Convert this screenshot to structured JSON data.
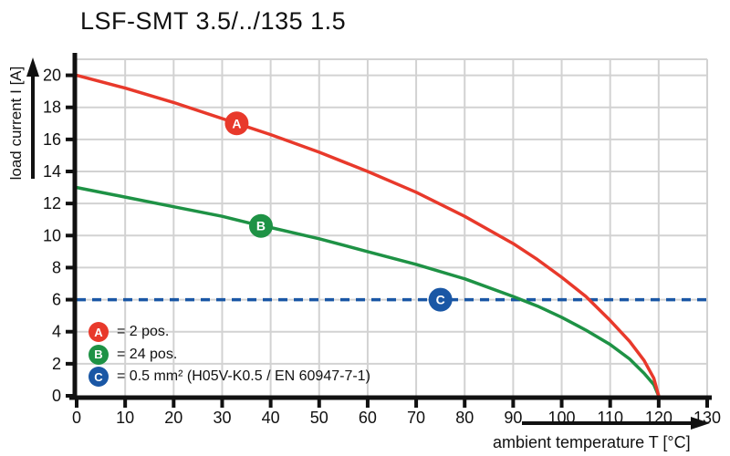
{
  "title": "LSF-SMT 3.5/../135 1.5",
  "chart_data": {
    "type": "line",
    "title": "LSF-SMT 3.5/../135 1.5",
    "xlabel": "ambient temperature T [°C]",
    "ylabel": "load current I [A]",
    "xlim": [
      0,
      130
    ],
    "ylim": [
      0,
      21
    ],
    "xtick_step": 10,
    "ytick_step": 2,
    "grid": true,
    "grid_color": "#d2d2d2",
    "axis_color": "#111111",
    "series": [
      {
        "id": "A",
        "label": "2 pos.",
        "color": "#e8392b",
        "style": "solid",
        "marker": {
          "t": 33,
          "i": 17
        },
        "points": [
          [
            0,
            20
          ],
          [
            10,
            19.2
          ],
          [
            20,
            18.3
          ],
          [
            30,
            17.3
          ],
          [
            33,
            17
          ],
          [
            40,
            16.3
          ],
          [
            50,
            15.2
          ],
          [
            60,
            14.0
          ],
          [
            70,
            12.7
          ],
          [
            80,
            11.2
          ],
          [
            90,
            9.5
          ],
          [
            95,
            8.5
          ],
          [
            100,
            7.4
          ],
          [
            105,
            6.2
          ],
          [
            110,
            4.7
          ],
          [
            114,
            3.4
          ],
          [
            117,
            2.2
          ],
          [
            119,
            1.1
          ],
          [
            120,
            0
          ]
        ]
      },
      {
        "id": "B",
        "label": "24 pos.",
        "color": "#1e9245",
        "style": "solid",
        "marker": {
          "t": 38,
          "i": 10.6
        },
        "points": [
          [
            0,
            13
          ],
          [
            10,
            12.4
          ],
          [
            20,
            11.8
          ],
          [
            30,
            11.2
          ],
          [
            38,
            10.6
          ],
          [
            40,
            10.5
          ],
          [
            50,
            9.8
          ],
          [
            60,
            9.0
          ],
          [
            70,
            8.2
          ],
          [
            80,
            7.3
          ],
          [
            90,
            6.2
          ],
          [
            95,
            5.6
          ],
          [
            100,
            4.9
          ],
          [
            105,
            4.1
          ],
          [
            110,
            3.2
          ],
          [
            114,
            2.3
          ],
          [
            117,
            1.4
          ],
          [
            119,
            0.7
          ],
          [
            120,
            0
          ]
        ]
      },
      {
        "id": "C",
        "label": "0.5 mm² (H05V-K0.5 / EN 60947-7-1)",
        "color": "#1a57a5",
        "style": "dashed",
        "marker": {
          "t": 75,
          "i": 6
        },
        "points": [
          [
            0,
            6
          ],
          [
            130,
            6
          ]
        ]
      }
    ],
    "legend": [
      {
        "letter": "A",
        "label": "= 2 pos.",
        "color": "#e8392b"
      },
      {
        "letter": "B",
        "label": "= 24 pos.",
        "color": "#1e9245"
      },
      {
        "letter": "C",
        "label": "= 0.5 mm² (H05V-K0.5 / EN 60947-7-1)",
        "color": "#1a57a5"
      }
    ]
  }
}
